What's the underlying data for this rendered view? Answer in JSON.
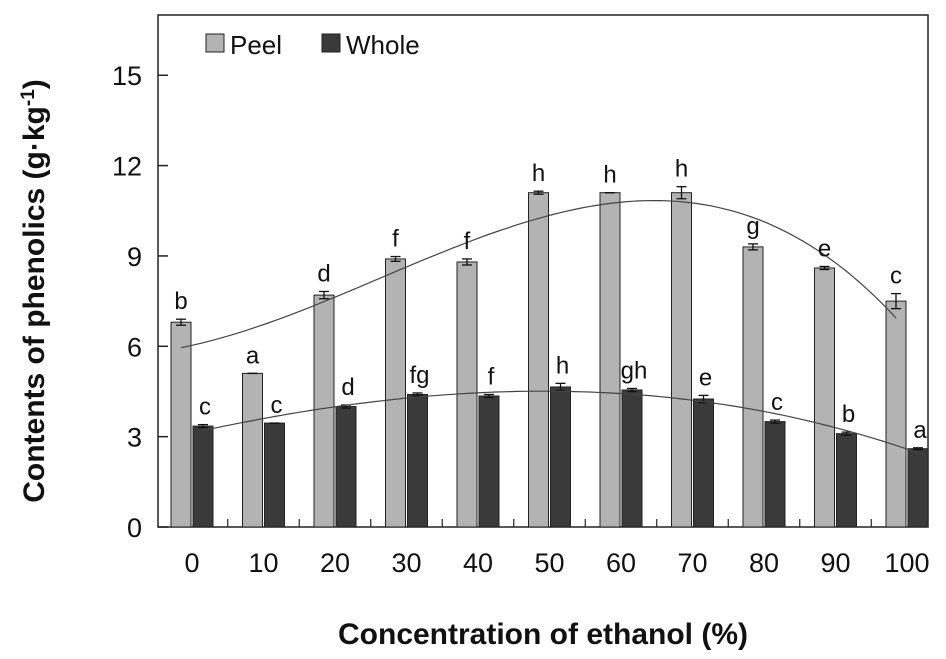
{
  "chart_data": {
    "type": "bar",
    "xlabel": "Concentration of ethanol (%)",
    "ylabel": "Contents of phenolics (g·kg",
    "ylabel_superscript": "-1",
    "ylabel_close": ")",
    "ylim": [
      0,
      17
    ],
    "yticks": [
      "0",
      "3",
      "6",
      "9",
      "12",
      "15"
    ],
    "categories": [
      "0",
      "10",
      "20",
      "30",
      "40",
      "50",
      "60",
      "70",
      "80",
      "90",
      "100"
    ],
    "legend_position": "top-left",
    "grid": false,
    "series": [
      {
        "name": "Peel",
        "color": "#b3b3b3",
        "values": [
          6.8,
          5.1,
          7.7,
          8.9,
          8.8,
          11.1,
          11.1,
          11.1,
          9.3,
          8.6,
          7.5
        ],
        "errors": [
          0.1,
          0.0,
          0.12,
          0.08,
          0.1,
          0.05,
          0.0,
          0.2,
          0.1,
          0.05,
          0.25
        ],
        "letters": [
          "b",
          "a",
          "d",
          "f",
          "f",
          "h",
          "h",
          "h",
          "g",
          "e",
          "c"
        ]
      },
      {
        "name": "Whole",
        "color": "#3a3a3a",
        "values": [
          3.35,
          3.45,
          4.0,
          4.4,
          4.35,
          4.65,
          4.55,
          4.25,
          3.5,
          3.1,
          2.6
        ],
        "errors": [
          0.05,
          0.0,
          0.05,
          0.05,
          0.05,
          0.12,
          0.05,
          0.12,
          0.05,
          0.05,
          0.03
        ],
        "letters": [
          "c",
          "c",
          "d",
          "fg",
          "f",
          "h",
          "gh",
          "e",
          "c",
          "b",
          "a"
        ]
      }
    ],
    "trendlines": [
      {
        "series": "Peel",
        "type": "polynomial"
      },
      {
        "series": "Whole",
        "type": "polynomial"
      }
    ]
  }
}
